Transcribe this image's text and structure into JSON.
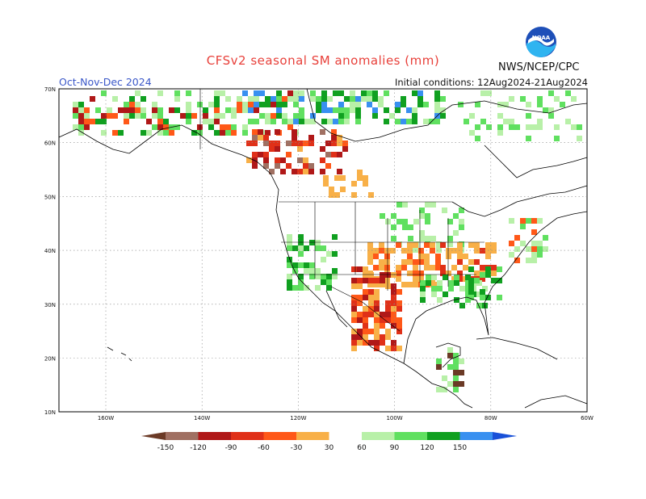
{
  "header": {
    "title": "CFSv2 seasonal SM anomalies (mm)",
    "season": "Oct-Nov-Dec 2024",
    "initial_conditions": "Initial conditions: 12Aug2024-21Aug2024",
    "agency": "NWS/NCEP/CPC",
    "logo_text": "NOAA"
  },
  "map": {
    "lat_labels": [
      "70N",
      "60N",
      "50N",
      "40N",
      "30N",
      "20N",
      "10N"
    ],
    "lon_labels": [
      "160W",
      "140W",
      "120W",
      "100W",
      "80W",
      "60W"
    ],
    "grid": true
  },
  "colorbar": {
    "labels": [
      "-150",
      "-120",
      "-90",
      "-60",
      "-30",
      "30",
      "60",
      "90",
      "120",
      "150"
    ],
    "colors": [
      "#6b3a26",
      "#a07062",
      "#b01818",
      "#e03018",
      "#ff5818",
      "#f8b048",
      "#ffffff",
      "#b8f0a8",
      "#60e060",
      "#10a020",
      "#3890f0",
      "#1850d8"
    ]
  }
}
